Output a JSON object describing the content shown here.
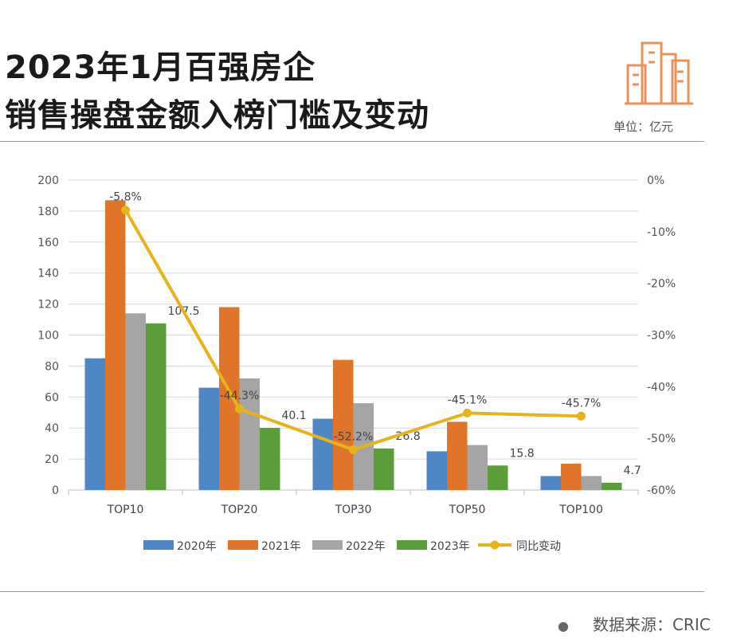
{
  "header": {
    "title_line1": "2023年1月百强房企",
    "title_line2": "销售操盘金额入榜门槛及变动",
    "unit": "单位：亿元",
    "logo_icon": "building-icon"
  },
  "footer": {
    "source": "数据来源：CRIC"
  },
  "chart_data": {
    "type": "bar",
    "categories": [
      "TOP10",
      "TOP20",
      "TOP30",
      "TOP50",
      "TOP100"
    ],
    "series": [
      {
        "name": "2020年",
        "color": "#4f86c6",
        "values": [
          85,
          66,
          46,
          25,
          9
        ]
      },
      {
        "name": "2021年",
        "color": "#e07428",
        "values": [
          187,
          118,
          84,
          44,
          17
        ]
      },
      {
        "name": "2022年",
        "color": "#a5a5a5",
        "values": [
          114,
          72,
          56,
          29,
          9
        ]
      },
      {
        "name": "2023年",
        "color": "#5a9e3a",
        "values": [
          107.5,
          40.1,
          26.8,
          15.8,
          4.7
        ]
      }
    ],
    "data_labels_2023": [
      "107.5",
      "40.1",
      "26.8",
      "15.8",
      "4.7"
    ],
    "line": {
      "name": "同比变动",
      "color": "#e6b419",
      "values": [
        -5.8,
        -44.3,
        -52.2,
        -45.1,
        -45.7
      ],
      "labels": [
        "-5.8%",
        "-44.3%",
        "-52.2%",
        "-45.1%",
        "-45.7%"
      ]
    },
    "y_left": {
      "ylim": [
        0,
        200
      ],
      "ticks": [
        "0",
        "20",
        "40",
        "60",
        "80",
        "100",
        "120",
        "140",
        "160",
        "180",
        "200"
      ]
    },
    "y_right": {
      "ylim": [
        -60,
        0
      ],
      "ticks": [
        "-60%",
        "-50%",
        "-40%",
        "-30%",
        "-20%",
        "-10%",
        "0%"
      ]
    },
    "grid": true,
    "legend_position": "bottom"
  }
}
